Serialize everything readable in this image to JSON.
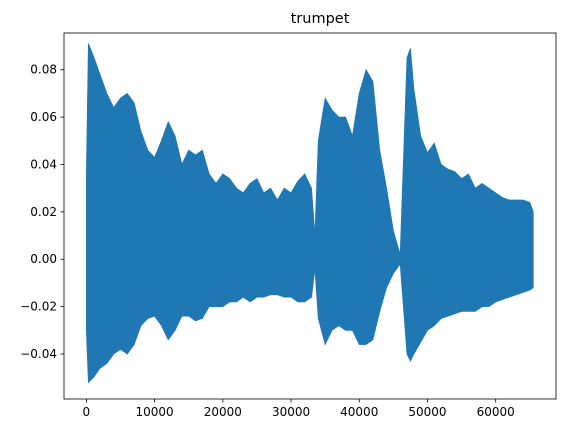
{
  "chart_data": {
    "type": "area",
    "title": "trumpet",
    "xlabel": "",
    "ylabel": "",
    "xlim": [
      -3280,
      68840
    ],
    "ylim": [
      -0.059,
      0.0955
    ],
    "grid": false,
    "legend": "none",
    "color": "#1f77b4",
    "x_ticks": [
      0,
      10000,
      20000,
      30000,
      40000,
      50000,
      60000
    ],
    "x_tick_labels": [
      "0",
      "10000",
      "20000",
      "30000",
      "40000",
      "50000",
      "60000"
    ],
    "y_ticks": [
      -0.04,
      -0.02,
      0.0,
      0.02,
      0.04,
      0.06,
      0.08
    ],
    "y_tick_labels": [
      "−0.04",
      "−0.02",
      "0.00",
      "0.02",
      "0.04",
      "0.06",
      "0.08"
    ],
    "series": [
      {
        "envelope_x": [
          0,
          300,
          1000,
          2000,
          3000,
          4000,
          5000,
          6000,
          7000,
          8000,
          9000,
          10000,
          11000,
          12000,
          13000,
          14000,
          15000,
          16000,
          17000,
          18000,
          19000,
          20000,
          21000,
          22000,
          23000,
          24000,
          25000,
          26000,
          27000,
          28000,
          29000,
          30000,
          31000,
          32000,
          33000,
          33500,
          34000,
          35000,
          36000,
          37000,
          38000,
          39000,
          40000,
          41000,
          42000,
          43000,
          44000,
          45000,
          46000,
          47000,
          47500,
          48000,
          49000,
          50000,
          51000,
          52000,
          53000,
          54000,
          55000,
          56000,
          57000,
          58000,
          59000,
          60000,
          61000,
          62000,
          63000,
          64000,
          65000,
          65500
        ],
        "envelope_upper": [
          0.035,
          0.091,
          0.086,
          0.078,
          0.07,
          0.064,
          0.068,
          0.07,
          0.066,
          0.054,
          0.046,
          0.043,
          0.05,
          0.058,
          0.052,
          0.04,
          0.046,
          0.044,
          0.046,
          0.036,
          0.032,
          0.036,
          0.034,
          0.03,
          0.028,
          0.032,
          0.034,
          0.028,
          0.03,
          0.025,
          0.03,
          0.028,
          0.033,
          0.036,
          0.03,
          0.01,
          0.05,
          0.068,
          0.063,
          0.06,
          0.06,
          0.052,
          0.07,
          0.08,
          0.075,
          0.046,
          0.03,
          0.012,
          0.002,
          0.085,
          0.089,
          0.072,
          0.052,
          0.045,
          0.049,
          0.04,
          0.038,
          0.037,
          0.034,
          0.036,
          0.03,
          0.032,
          0.03,
          0.028,
          0.026,
          0.025,
          0.025,
          0.025,
          0.024,
          0.02
        ],
        "envelope_lower": [
          -0.03,
          -0.052,
          -0.05,
          -0.046,
          -0.044,
          -0.04,
          -0.038,
          -0.04,
          -0.036,
          -0.028,
          -0.025,
          -0.024,
          -0.028,
          -0.034,
          -0.03,
          -0.024,
          -0.024,
          -0.026,
          -0.025,
          -0.02,
          -0.02,
          -0.02,
          -0.018,
          -0.018,
          -0.016,
          -0.018,
          -0.016,
          -0.016,
          -0.015,
          -0.015,
          -0.016,
          -0.016,
          -0.018,
          -0.018,
          -0.016,
          -0.004,
          -0.025,
          -0.036,
          -0.03,
          -0.028,
          -0.03,
          -0.03,
          -0.036,
          -0.036,
          -0.034,
          -0.022,
          -0.012,
          -0.006,
          -0.002,
          -0.04,
          -0.043,
          -0.04,
          -0.035,
          -0.03,
          -0.028,
          -0.025,
          -0.024,
          -0.023,
          -0.022,
          -0.022,
          -0.022,
          -0.02,
          -0.02,
          -0.018,
          -0.017,
          -0.016,
          -0.015,
          -0.014,
          -0.013,
          -0.012
        ]
      }
    ]
  }
}
